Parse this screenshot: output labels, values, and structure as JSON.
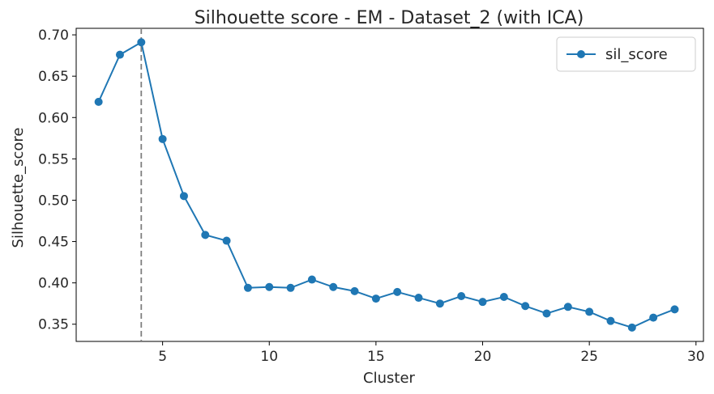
{
  "chart_data": {
    "type": "line",
    "title": "Silhouette score - EM - Dataset_2 (with ICA)",
    "xlabel": "Cluster",
    "ylabel": "Silhouette_score",
    "xlim": [
      0.95,
      30.35
    ],
    "ylim": [
      0.3292,
      0.7079
    ],
    "xticks": [
      5,
      10,
      15,
      20,
      25,
      30
    ],
    "yticks": [
      0.35,
      0.4,
      0.45,
      0.5,
      0.55,
      0.6,
      0.65,
      0.7
    ],
    "ytick_labels": [
      "0.35",
      "0.40",
      "0.45",
      "0.50",
      "0.55",
      "0.60",
      "0.65",
      "0.70"
    ],
    "grid": false,
    "legend_position": "top-right",
    "vline": {
      "x": 4,
      "style": "dashed",
      "color": "#7f7f7f"
    },
    "series": [
      {
        "name": "sil_score",
        "color": "#1f77b4",
        "marker": "circle",
        "x": [
          2,
          3,
          4,
          5,
          6,
          7,
          8,
          9,
          10,
          11,
          12,
          13,
          14,
          15,
          16,
          17,
          18,
          19,
          20,
          21,
          22,
          23,
          24,
          25,
          26,
          27,
          28,
          29
        ],
        "y": [
          0.619,
          0.676,
          0.691,
          0.574,
          0.505,
          0.458,
          0.451,
          0.394,
          0.395,
          0.394,
          0.404,
          0.395,
          0.39,
          0.381,
          0.389,
          0.382,
          0.375,
          0.384,
          0.377,
          0.383,
          0.372,
          0.363,
          0.371,
          0.365,
          0.354,
          0.346,
          0.358,
          0.368
        ]
      }
    ]
  }
}
